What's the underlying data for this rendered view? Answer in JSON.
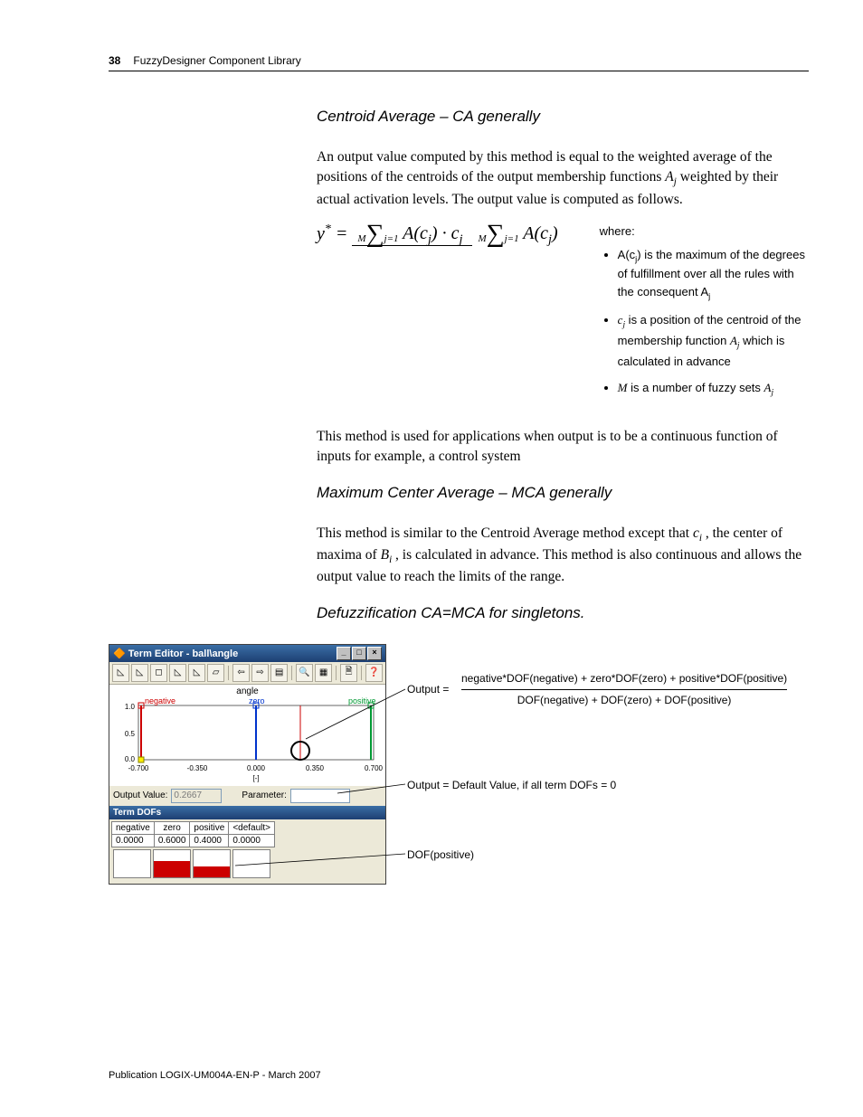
{
  "header": {
    "page_number": "38",
    "chapter": "FuzzyDesigner Component Library"
  },
  "section1": {
    "title": "Centroid Average – CA generally",
    "para1_a": "An output value computed by this method is equal to the weighted average of the positions of the centroids of the output membership functions ",
    "para1_b": " weighted by their actual activation levels. The output value is computed as follows.",
    "aj": "A",
    "aj_sub": "j",
    "formula_text": {
      "lhs": "y",
      "lhs_sup": "*",
      "eq": " = ",
      "sum_top": "M",
      "sum_bot": "j=1",
      "num_expr": "A(c",
      "num_sub": "j",
      "num_expr2": ") · c",
      "num_sub2": "j",
      "den_expr": "A(c",
      "den_sub": "j",
      "den_expr2": ")"
    },
    "where_label": "where:",
    "where_items": [
      {
        "pre": "A(c",
        "sub": "j",
        "post": ") is the maximum of the degrees of fulfillment over all the rules with the consequent A",
        "sub2": "j"
      },
      {
        "pre_it": "c",
        "sub": "j",
        "post": " is a position of the centroid of the membership function ",
        "it2": "A",
        "sub2": "j",
        "tail": " which is calculated in advance"
      },
      {
        "pre_it": "M",
        "post": " is a number of fuzzy sets ",
        "it2": "A",
        "sub2": "j"
      }
    ],
    "para2": "This method is used for applications when output is to be a continuous function of inputs for example, a control system"
  },
  "section2": {
    "title": "Maximum Center Average – MCA generally",
    "para_a": "This method is similar to the Centroid Average method except that ",
    "ci": "c",
    "ci_sub": "i",
    "para_b": " , the center of maxima of ",
    "bi": "B",
    "bi_sub": "i",
    "para_c": " , is calculated in advance. This method is also continuous and allows the output value to reach the limits of the range."
  },
  "section3": {
    "title": "Defuzzification CA=MCA for singletons."
  },
  "editor": {
    "title": "Term Editor - ball\\angle",
    "chart_title": "angle",
    "legend": {
      "neg": "negative",
      "zero": "zero",
      "pos": "positive"
    },
    "y_ticks": [
      "1.0",
      "0.5",
      "0.0"
    ],
    "x_ticks": [
      "-0.700",
      "-0.350",
      "0.000",
      "0.350",
      "0.700"
    ],
    "x_axis_label": "[-]",
    "output_label": "Output Value:",
    "output_value": "0.2667",
    "param_label": "Parameter:",
    "param_value": "",
    "dofs_header": "Term DOFs",
    "dofs_cols": [
      "negative",
      "zero",
      "positive",
      "<default>"
    ],
    "dofs_vals": [
      "0.0000",
      "0.6000",
      "0.4000",
      "0.0000"
    ],
    "dofs_fill": [
      0.0,
      0.6,
      0.4,
      0.0
    ]
  },
  "annots": {
    "out_lhs": "Output =",
    "out_num": "negative*DOF(negative) + zero*DOF(zero) + positive*DOF(positive)",
    "out_den": "DOF(negative) + DOF(zero) + DOF(positive)",
    "out_default": "Output = Default Value, if all term DOFs = 0",
    "dof_pos": "DOF(positive)"
  },
  "footer": "Publication LOGIX-UM004A-EN-P - March 2007"
}
